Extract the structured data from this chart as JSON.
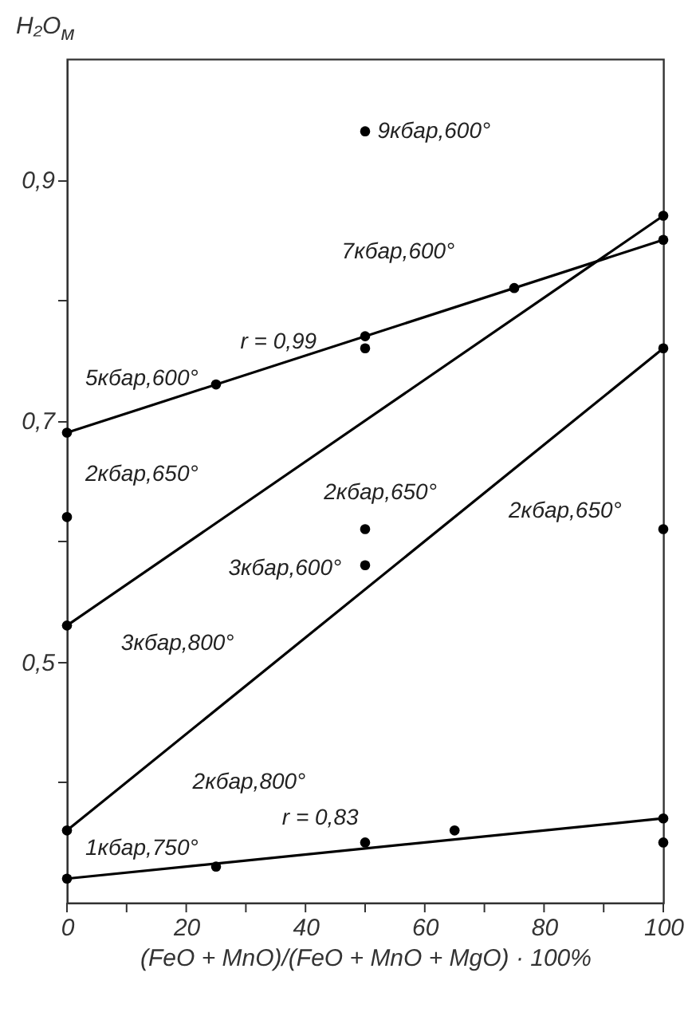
{
  "chart_data": {
    "type": "scatter",
    "ylabel": "H₂O$_{м}$",
    "xlabel": "(FeO + MnO)/(FeO + MnO + MgO) · 100%",
    "xlim": [
      0,
      100
    ],
    "ylim": [
      0.3,
      1.0
    ],
    "xticks": [
      0,
      {
        "value": 10,
        "label": null
      },
      20,
      {
        "value": 30,
        "label": null
      },
      40,
      {
        "value": 50,
        "label": null
      },
      60,
      {
        "value": 70,
        "label": null
      },
      80,
      {
        "value": 90,
        "label": null
      },
      100
    ],
    "yticks": [
      {
        "value": 0.4,
        "label": null
      },
      {
        "value": 0.5,
        "label": "0,5"
      },
      {
        "value": 0.6,
        "label": null
      },
      {
        "value": 0.7,
        "label": "0,7"
      },
      {
        "value": 0.8,
        "label": null
      },
      {
        "value": 0.9,
        "label": "0,9"
      }
    ],
    "marker": "circle",
    "line_style": "solid",
    "grid": false,
    "legend": false,
    "series": [
      {
        "type": "line",
        "marker": "none",
        "color": "#000000",
        "x": [
          0,
          100
        ],
        "values": [
          0.69,
          0.85
        ]
      },
      {
        "type": "line",
        "marker": "none",
        "color": "#000000",
        "x": [
          0,
          100
        ],
        "values": [
          0.53,
          0.87
        ]
      },
      {
        "type": "line",
        "marker": "none",
        "color": "#000000",
        "x": [
          0,
          100
        ],
        "values": [
          0.36,
          0.76
        ]
      },
      {
        "type": "line",
        "marker": "none",
        "color": "#000000",
        "x": [
          0,
          100
        ],
        "values": [
          0.32,
          0.37
        ]
      },
      {
        "color": "#000000",
        "x": [
          0,
          25,
          50,
          50,
          75,
          100,
          100,
          50,
          0,
          50,
          50,
          100,
          100,
          0,
          0,
          25,
          50,
          65,
          100,
          100,
          0
        ],
        "values": [
          0.69,
          0.73,
          0.77,
          0.76,
          0.81,
          0.85,
          0.87,
          0.94,
          0.62,
          0.61,
          0.58,
          0.61,
          0.76,
          0.53,
          0.36,
          0.33,
          0.35,
          0.36,
          0.37,
          0.35,
          0.32
        ]
      }
    ],
    "annotations": [
      "9кбар,600°",
      "5кбар,600°",
      "r = 0,99",
      "7кбар,600°",
      "2кбар,650°",
      "3кбар,800°",
      "2кбар,650°",
      "3кбар,600°",
      "2кбар,650°",
      "2кбар,800°",
      "1кбар,750°",
      "r = 0,83"
    ]
  }
}
